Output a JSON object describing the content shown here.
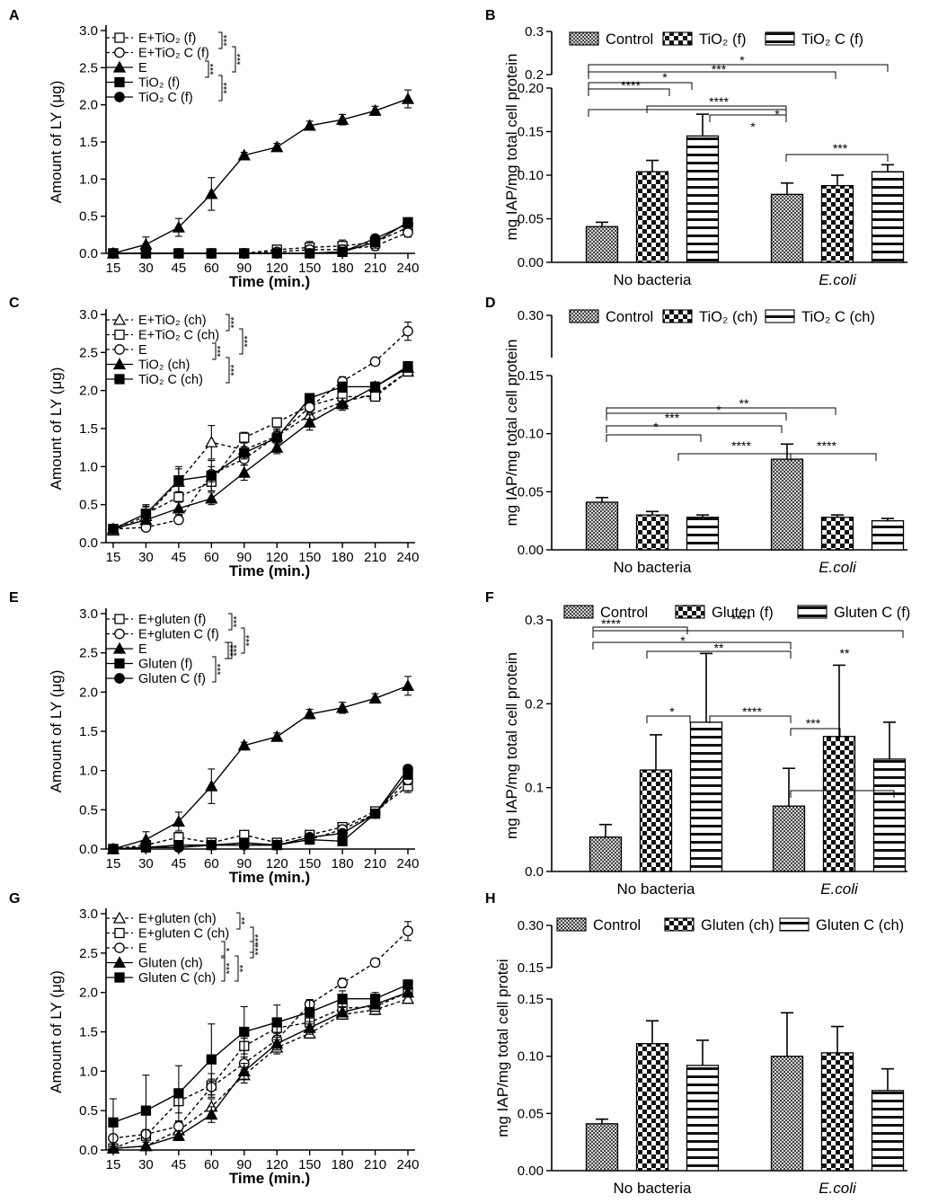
{
  "figure": {
    "x_categories": [
      "15",
      "30",
      "45",
      "60",
      "90",
      "120",
      "150",
      "180",
      "210",
      "240"
    ],
    "group_labels": [
      "No bacteria",
      "E.coli"
    ]
  },
  "chart_data": [
    {
      "panel": "A",
      "type": "line",
      "xlabel": "Time (min.)",
      "ylabel": "Amount of LY (μg)",
      "ylim": [
        0,
        3.0
      ],
      "yticks": [
        "0.0",
        "0.5",
        "1.0",
        "1.5",
        "2.0",
        "2.5",
        "3.0"
      ],
      "categories": [
        "15",
        "30",
        "45",
        "60",
        "90",
        "120",
        "150",
        "180",
        "210",
        "240"
      ],
      "series": [
        {
          "name": "E+TiO₂ (f)",
          "marker": "square-open",
          "dashed": true,
          "values": [
            0,
            0,
            0,
            0,
            0,
            0.05,
            0.08,
            0.1,
            0.15,
            0.35
          ],
          "errors": [
            0,
            0,
            0,
            0,
            0,
            0.05,
            0.08,
            0.08,
            0.08,
            0.05
          ]
        },
        {
          "name": "E+TiO₂ C (f)",
          "marker": "circle-open",
          "dashed": true,
          "values": [
            0,
            0,
            0,
            0,
            0,
            0.02,
            0.05,
            0.05,
            0.1,
            0.28
          ],
          "errors": [
            0,
            0,
            0,
            0,
            0,
            0.03,
            0.05,
            0.06,
            0.06,
            0.06
          ]
        },
        {
          "name": "E",
          "marker": "triangle",
          "dashed": false,
          "values": [
            0,
            0.12,
            0.35,
            0.8,
            1.32,
            1.43,
            1.72,
            1.8,
            1.92,
            2.08
          ],
          "errors": [
            0,
            0.1,
            0.12,
            0.22,
            0.04,
            0.05,
            0.06,
            0.07,
            0.06,
            0.12
          ]
        },
        {
          "name": "TiO₂ (f)",
          "marker": "square",
          "dashed": false,
          "values": [
            0,
            0,
            0,
            0,
            0,
            0,
            0,
            0.02,
            0.15,
            0.42
          ],
          "errors": [
            0,
            0,
            0,
            0,
            0,
            0,
            0,
            0.03,
            0.08,
            0.04
          ]
        },
        {
          "name": "TiO₂ C (f)",
          "marker": "circle",
          "dashed": false,
          "values": [
            0,
            0,
            0,
            0,
            0,
            0,
            0,
            0.02,
            0.2,
            0.4
          ],
          "errors": [
            0,
            0,
            0,
            0,
            0,
            0,
            0,
            0.03,
            0.05,
            0.04
          ]
        }
      ],
      "significance": [
        "***",
        "***",
        "***",
        "***"
      ]
    },
    {
      "panel": "B",
      "type": "bar",
      "ylabel": "mg IAP/mg total cell protein",
      "ylim_lower": [
        0,
        0.2
      ],
      "ylim_upper": [
        0.2,
        0.3
      ],
      "yticks_lower": [
        "0.00",
        "0.05",
        "0.10",
        "0.15",
        "0.20"
      ],
      "yticks_upper": [
        "0.2",
        "0.3"
      ],
      "groups": [
        "No bacteria",
        "E.coli"
      ],
      "series": [
        {
          "name": "Control",
          "pattern": "check",
          "values": [
            0.041,
            0.078
          ],
          "errors": [
            0.005,
            0.013
          ]
        },
        {
          "name": "TiO₂ (f)",
          "pattern": "check2",
          "values": [
            0.104,
            0.088
          ],
          "errors": [
            0.013,
            0.012
          ]
        },
        {
          "name": "TiO₂ C (f)",
          "pattern": "hstripe",
          "values": [
            0.145,
            0.104
          ],
          "errors": [
            0.025,
            0.008
          ]
        }
      ],
      "significance": [
        "****",
        "***",
        "*",
        "****",
        "*",
        "*",
        "***",
        "*"
      ]
    },
    {
      "panel": "C",
      "type": "line",
      "xlabel": "Time (min.)",
      "ylabel": "Amount of LY (μg)",
      "ylim": [
        0,
        3.0
      ],
      "yticks": [
        "0.0",
        "0.5",
        "1.0",
        "1.5",
        "2.0",
        "2.5",
        "3.0"
      ],
      "categories": [
        "15",
        "30",
        "45",
        "60",
        "90",
        "120",
        "150",
        "180",
        "210",
        "240"
      ],
      "series": [
        {
          "name": "E+TiO₂ (ch)",
          "marker": "triangle-open",
          "dashed": true,
          "values": [
            0.16,
            0.35,
            0.8,
            1.32,
            1.22,
            1.4,
            1.68,
            1.85,
            1.95,
            2.25
          ],
          "errors": [
            0.04,
            0.12,
            0.2,
            0.22,
            0.1,
            0.1,
            0.1,
            0.08,
            0.06,
            0.05
          ]
        },
        {
          "name": "E+TiO₂ C (ch)",
          "marker": "square-open",
          "dashed": true,
          "values": [
            0.18,
            0.38,
            0.6,
            0.8,
            1.38,
            1.58,
            1.8,
            1.92,
            1.92,
            2.25
          ],
          "errors": [
            0.04,
            0.12,
            0.15,
            0.12,
            0.07,
            0.06,
            0.08,
            0.08,
            0.06,
            0.05
          ]
        },
        {
          "name": "E",
          "marker": "circle-open",
          "dashed": true,
          "values": [
            0.18,
            0.2,
            0.3,
            0.9,
            1.1,
            1.4,
            1.78,
            2.12,
            2.38,
            2.78
          ],
          "errors": [
            0.04,
            0.04,
            0.05,
            0.1,
            0.08,
            0.08,
            0.08,
            0.06,
            0.05,
            0.12
          ]
        },
        {
          "name": "TiO₂ (ch)",
          "marker": "triangle",
          "dashed": false,
          "values": [
            0.18,
            0.3,
            0.45,
            0.58,
            0.92,
            1.25,
            1.58,
            1.82,
            2.05,
            2.3
          ],
          "errors": [
            0.04,
            0.05,
            0.08,
            0.08,
            0.1,
            0.08,
            0.1,
            0.08,
            0.06,
            0.05
          ]
        },
        {
          "name": "TiO₂ C (ch)",
          "marker": "square",
          "dashed": false,
          "values": [
            0.18,
            0.38,
            0.82,
            0.88,
            1.18,
            1.38,
            1.9,
            2.05,
            2.05,
            2.32
          ],
          "errors": [
            0.04,
            0.1,
            0.15,
            0.2,
            0.08,
            0.08,
            0.06,
            0.06,
            0.06,
            0.05
          ]
        }
      ],
      "significance": [
        "***",
        "***",
        "***",
        "***"
      ]
    },
    {
      "panel": "D",
      "type": "bar",
      "ylabel": "mg IAP/mg total cell protein",
      "ylim_lower": [
        0,
        0.15
      ],
      "ylim_upper": [
        0.15,
        0.3
      ],
      "yticks_lower": [
        "0.00",
        "0.05",
        "0.10",
        "0.15"
      ],
      "yticks_upper": [
        "0.30"
      ],
      "groups": [
        "No bacteria",
        "E.coli"
      ],
      "series": [
        {
          "name": "Control",
          "pattern": "check",
          "values": [
            0.041,
            0.078
          ],
          "errors": [
            0.004,
            0.013
          ]
        },
        {
          "name": "TiO₂ (ch)",
          "pattern": "check2",
          "values": [
            0.03,
            0.028
          ],
          "errors": [
            0.003,
            0.002
          ]
        },
        {
          "name": "TiO₂ C (ch)",
          "pattern": "hstripe",
          "values": [
            0.028,
            0.025
          ],
          "errors": [
            0.002,
            0.002
          ]
        }
      ],
      "significance": [
        "**",
        "*",
        "***",
        "*",
        "****",
        "****"
      ]
    },
    {
      "panel": "E",
      "type": "line",
      "xlabel": "Time (min.)",
      "ylabel": "Amount of LY (μg)",
      "ylim": [
        0,
        3.0
      ],
      "yticks": [
        "0.0",
        "0.5",
        "1.0",
        "1.5",
        "2.0",
        "2.5",
        "3.0"
      ],
      "categories": [
        "15",
        "30",
        "45",
        "60",
        "90",
        "120",
        "150",
        "180",
        "210",
        "240"
      ],
      "series": [
        {
          "name": "E+gluten (f)",
          "marker": "square-open",
          "dashed": true,
          "values": [
            0,
            0.05,
            0.15,
            0.08,
            0.18,
            0.08,
            0.18,
            0.28,
            0.48,
            0.8
          ],
          "errors": [
            0,
            0.04,
            0.06,
            0.04,
            0.04,
            0.03,
            0.04,
            0.05,
            0.05,
            0.08
          ]
        },
        {
          "name": "E+gluten C (f)",
          "marker": "circle-open",
          "dashed": true,
          "values": [
            0,
            0.02,
            0.02,
            0.05,
            0.05,
            0.05,
            0.12,
            0.25,
            0.45,
            0.88
          ],
          "errors": [
            0,
            0.03,
            0.03,
            0.03,
            0.03,
            0.03,
            0.04,
            0.05,
            0.05,
            0.06
          ]
        },
        {
          "name": "E",
          "marker": "triangle",
          "dashed": false,
          "values": [
            0,
            0.12,
            0.35,
            0.8,
            1.32,
            1.43,
            1.72,
            1.8,
            1.92,
            2.08
          ],
          "errors": [
            0,
            0.1,
            0.12,
            0.22,
            0.04,
            0.05,
            0.06,
            0.07,
            0.06,
            0.12
          ]
        },
        {
          "name": "Gluten (f)",
          "marker": "square",
          "dashed": false,
          "values": [
            0,
            0.02,
            0.05,
            0.05,
            0.08,
            0.05,
            0.12,
            0.1,
            0.45,
            0.95
          ],
          "errors": [
            0,
            0.03,
            0.03,
            0.03,
            0.03,
            0.03,
            0.03,
            0.04,
            0.05,
            0.06
          ]
        },
        {
          "name": "Gluten C (f)",
          "marker": "circle",
          "dashed": false,
          "values": [
            0,
            0.02,
            0.02,
            0.05,
            0.05,
            0.05,
            0.15,
            0.2,
            0.45,
            1.02
          ],
          "errors": [
            0,
            0.03,
            0.03,
            0.03,
            0.03,
            0.03,
            0.04,
            0.04,
            0.05,
            0.05
          ]
        }
      ],
      "significance": [
        "***",
        "***",
        "***",
        "***",
        "***"
      ]
    },
    {
      "panel": "F",
      "type": "bar",
      "ylabel": "mg IAP/mg total cell protein",
      "ylim": [
        0,
        0.3
      ],
      "yticks": [
        "0.0",
        "0.1",
        "0.2",
        "0.3"
      ],
      "groups": [
        "No bacteria",
        "E.coli"
      ],
      "series": [
        {
          "name": "Control",
          "pattern": "check",
          "values": [
            0.041,
            0.078
          ],
          "errors": [
            0.015,
            0.045
          ]
        },
        {
          "name": "Gluten (f)",
          "pattern": "check2",
          "values": [
            0.121,
            0.161
          ],
          "errors": [
            0.042,
            0.085
          ]
        },
        {
          "name": "Gluten C (f)",
          "pattern": "hstripe",
          "values": [
            0.178,
            0.134
          ],
          "errors": [
            0.082,
            0.044
          ]
        }
      ],
      "significance": [
        "****",
        "****",
        "*",
        "**",
        "*",
        "****",
        "***",
        "**"
      ]
    },
    {
      "panel": "G",
      "type": "line",
      "xlabel": "Time (min.)",
      "ylabel": "Amount of LY (μg)",
      "ylim": [
        0,
        3.0
      ],
      "yticks": [
        "0.0",
        "0.5",
        "1.0",
        "1.5",
        "2.0",
        "2.5",
        "3.0"
      ],
      "categories": [
        "15",
        "30",
        "45",
        "60",
        "90",
        "120",
        "150",
        "180",
        "210",
        "240"
      ],
      "series": [
        {
          "name": "E+gluten (ch)",
          "marker": "triangle-open",
          "dashed": true,
          "values": [
            0.02,
            0.05,
            0.25,
            0.55,
            0.95,
            1.3,
            1.48,
            1.72,
            1.78,
            1.92
          ],
          "errors": [
            0.03,
            0.05,
            0.1,
            0.1,
            0.1,
            0.08,
            0.06,
            0.06,
            0.06,
            0.05
          ]
        },
        {
          "name": "E+gluten C (ch)",
          "marker": "square-open",
          "dashed": true,
          "values": [
            0.02,
            0.18,
            0.62,
            0.82,
            1.32,
            1.55,
            1.62,
            1.8,
            1.82,
            2.0
          ],
          "errors": [
            0.03,
            0.08,
            0.15,
            0.15,
            0.1,
            0.1,
            0.08,
            0.06,
            0.06,
            0.05
          ]
        },
        {
          "name": "E",
          "marker": "circle-open",
          "dashed": true,
          "values": [
            0.15,
            0.2,
            0.3,
            0.8,
            1.1,
            1.4,
            1.85,
            2.12,
            2.38,
            2.78
          ],
          "errors": [
            0.05,
            0.05,
            0.06,
            0.1,
            0.08,
            0.08,
            0.06,
            0.06,
            0.05,
            0.12
          ]
        },
        {
          "name": "Gluten (ch)",
          "marker": "triangle",
          "dashed": false,
          "values": [
            0.02,
            0.05,
            0.18,
            0.45,
            1.0,
            1.35,
            1.55,
            1.75,
            1.85,
            2.0
          ],
          "errors": [
            0.03,
            0.05,
            0.06,
            0.1,
            0.1,
            0.08,
            0.08,
            0.06,
            0.06,
            0.05
          ]
        },
        {
          "name": "Gluten C (ch)",
          "marker": "square",
          "dashed": false,
          "values": [
            0.35,
            0.5,
            0.72,
            1.15,
            1.5,
            1.62,
            1.75,
            1.92,
            1.92,
            2.1
          ],
          "errors": [
            0.3,
            0.45,
            0.35,
            0.45,
            0.32,
            0.22,
            0.15,
            0.1,
            0.08,
            0.06
          ]
        }
      ],
      "significance": [
        "**",
        "***",
        "***",
        "***",
        "*",
        "**"
      ]
    },
    {
      "panel": "H",
      "type": "bar",
      "ylabel": "mg IAP/mg total cell protei",
      "ylim_lower": [
        0,
        0.15
      ],
      "ylim_upper": [
        0.15,
        0.3
      ],
      "yticks_lower": [
        "0.00",
        "0.05",
        "0.10",
        "0.15"
      ],
      "yticks_upper": [
        "0.15",
        "0.30"
      ],
      "groups": [
        "No bacteria",
        "E.coli"
      ],
      "series": [
        {
          "name": "Control",
          "pattern": "check",
          "values": [
            0.041,
            0.1
          ],
          "errors": [
            0.004,
            0.038
          ]
        },
        {
          "name": "Gluten (ch)",
          "pattern": "check2",
          "values": [
            0.111,
            0.103
          ],
          "errors": [
            0.02,
            0.023
          ]
        },
        {
          "name": "Gluten C (ch)",
          "pattern": "hstripe",
          "values": [
            0.092,
            0.07
          ],
          "errors": [
            0.022,
            0.019
          ]
        }
      ],
      "significance": []
    }
  ]
}
